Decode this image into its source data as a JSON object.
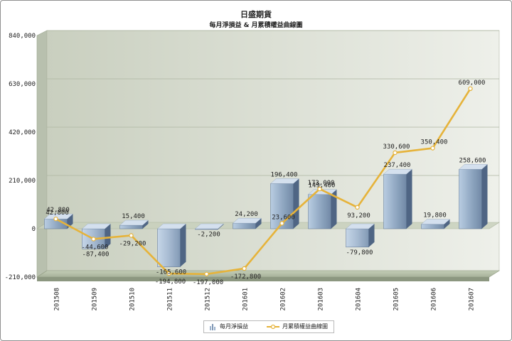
{
  "title": "日盛期貨",
  "subtitle": "每月淨損益 & 月累積權益曲線圖",
  "colors": {
    "bar": "#8aa1bc",
    "line": "#e6b33a",
    "plot_bg": "#d9decf"
  },
  "legend": [
    {
      "label": "每月淨損益",
      "icon": "bar-chart-icon"
    },
    {
      "label": "月累積權益曲線圖",
      "icon": "line-marker-icon"
    }
  ],
  "chart_data": {
    "type": "bar+line",
    "categories": [
      "201508",
      "201509",
      "201510",
      "201511",
      "201512",
      "201601",
      "201602",
      "201603",
      "201604",
      "201605",
      "201606",
      "201607"
    ],
    "series": [
      {
        "name": "每月淨損益",
        "type": "bar",
        "values": [
          42800,
          -87400,
          15400,
          -165600,
          -2200,
          24200,
          196400,
          149400,
          -79800,
          237400,
          19800,
          258600
        ],
        "labels": [
          "42,800",
          "-87,400",
          "15,400",
          "-165,600",
          "-2,200",
          "24,200",
          "196,400",
          "149,400",
          "-79,800",
          "237,400",
          "19,800",
          "258,600"
        ]
      },
      {
        "name": "月累積權益曲線圖",
        "type": "line",
        "values": [
          42800,
          -44600,
          -29200,
          -194800,
          -197000,
          -172800,
          23600,
          173000,
          93200,
          330600,
          350400,
          609000
        ],
        "labels": [
          "42,800",
          "-44,600",
          "-29,200",
          "-194,800",
          "-197,000",
          "-172,800",
          "23,600",
          "173,000",
          "93,200",
          "330,600",
          "350,400",
          "609,000"
        ]
      }
    ],
    "ylim": [
      -210000,
      840000
    ],
    "yticks": [
      -210000,
      0,
      210000,
      420000,
      630000,
      840000
    ],
    "ytick_labels": [
      "-210,000",
      "0",
      "210,000",
      "420,000",
      "630,000",
      "840,000"
    ],
    "grid": true,
    "legend_position": "bottom-center"
  }
}
